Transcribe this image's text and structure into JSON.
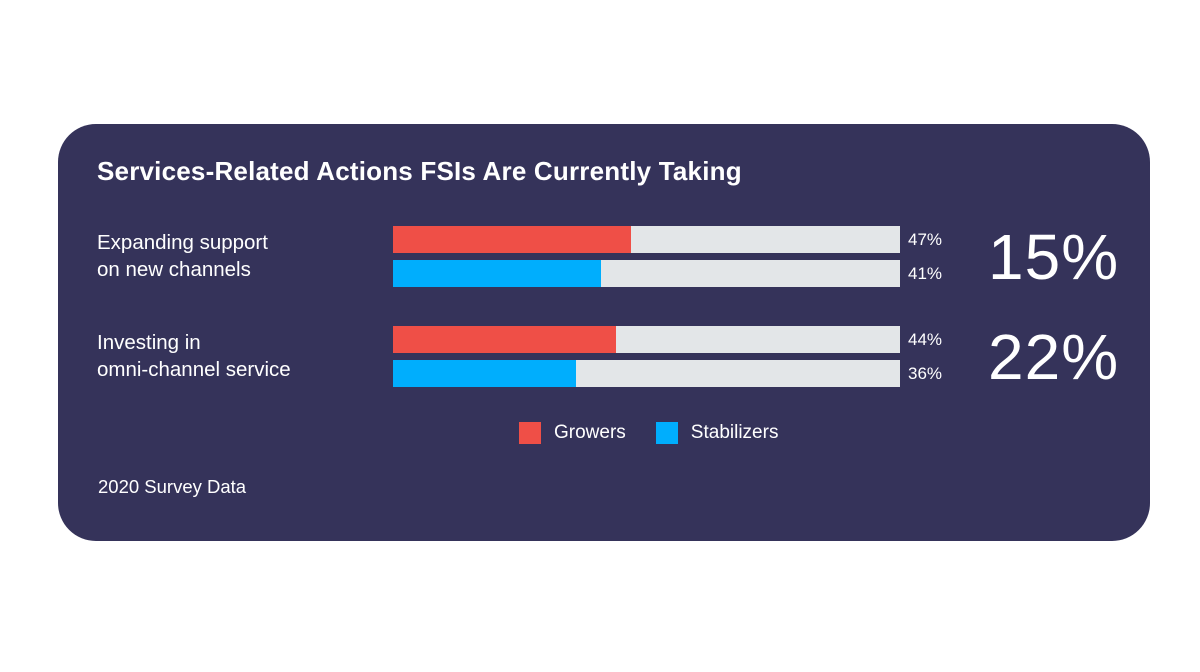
{
  "card": {
    "title": "Services-Related Actions FSIs Are Currently Taking",
    "source_note": "2020 Survey Data",
    "background": "#35335A"
  },
  "colors": {
    "growers": "#EF4F47",
    "stabilizers": "#00AEFD",
    "bar_track": "#E3E6E8",
    "text": "#FFFFFF",
    "page_background": "#FFFFFF"
  },
  "chart_data": {
    "type": "bar",
    "orientation": "horizontal",
    "title": "Services-Related Actions FSIs Are Currently Taking",
    "categories": [
      "Expanding support on new channels",
      "Investing in omni-channel service"
    ],
    "series": [
      {
        "name": "Growers",
        "color": "#EF4F47",
        "values": [
          47,
          44
        ]
      },
      {
        "name": "Stabilizers",
        "color": "#00AEFD",
        "values": [
          41,
          36
        ]
      }
    ],
    "value_labels": [
      [
        "47%",
        "41%"
      ],
      [
        "44%",
        "36%"
      ]
    ],
    "highlight_values": {
      "labels": [
        "15%",
        "22%"
      ],
      "position": "right-of-groups"
    },
    "xlim": [
      0,
      100
    ],
    "grid": false,
    "legend_position": "bottom-center",
    "source": "2020 Survey Data"
  },
  "groups": [
    {
      "label_line1": "Expanding support",
      "label_line2": "on new channels",
      "growers_value": 47,
      "growers_label": "47%",
      "stabilizers_value": 41,
      "stabilizers_label": "41%",
      "highlight": "15%"
    },
    {
      "label_line1": "Investing in",
      "label_line2": "omni-channel service",
      "growers_value": 44,
      "growers_label": "44%",
      "stabilizers_value": 36,
      "stabilizers_label": "36%",
      "highlight": "22%"
    }
  ],
  "legend": {
    "items": [
      {
        "label": "Growers",
        "color": "#EF4F47"
      },
      {
        "label": "Stabilizers",
        "color": "#00AEFD"
      }
    ]
  }
}
